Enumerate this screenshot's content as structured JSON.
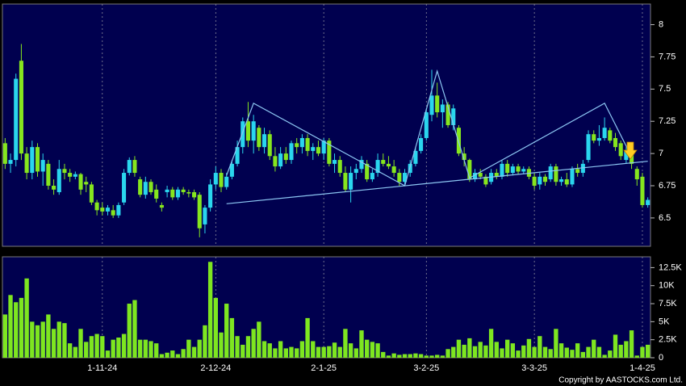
{
  "chart_data": [
    {
      "type": "candlestick",
      "up_color": "#2ad6ee",
      "down_color": "#86e61e",
      "open": [
        7.08,
        6.92,
        6.95,
        7.72,
        7.0,
        6.85,
        7.05,
        6.86,
        6.92,
        6.75,
        6.7,
        6.88,
        6.85,
        6.82,
        6.84,
        6.78,
        6.76,
        6.62,
        6.58,
        6.55,
        6.56,
        6.52,
        6.62,
        6.85,
        6.95,
        6.8,
        6.68,
        6.78,
        6.72,
        6.6,
        6.7,
        6.72,
        6.66,
        6.72,
        6.7,
        6.7,
        6.68,
        6.45,
        6.58,
        6.76,
        6.85,
        6.74,
        6.82,
        6.92,
        7.05,
        7.25,
        7.1,
        7.2,
        7.05,
        7.15,
        6.98,
        6.9,
        7.0,
        6.95,
        7.08,
        7.05,
        7.12,
        7.02,
        7.05,
        7.0,
        7.1,
        6.92,
        6.95,
        6.85,
        6.72,
        6.85,
        6.88,
        6.92,
        6.8,
        6.85,
        6.95,
        6.92,
        6.9,
        6.85,
        6.78,
        6.85,
        6.92,
        7.02,
        7.12,
        7.3,
        7.45,
        7.32,
        7.38,
        7.22,
        7.2,
        7.0,
        6.95,
        6.8,
        6.85,
        6.82,
        6.78,
        6.85,
        6.82,
        6.92,
        6.85,
        6.9,
        6.86,
        6.88,
        6.82,
        6.76,
        6.82,
        6.8,
        6.9,
        6.78,
        6.8,
        6.76,
        6.88,
        6.85,
        6.95,
        7.15,
        7.1,
        7.12,
        7.18,
        7.12,
        7.08,
        6.95,
        7.02,
        6.88,
        6.82,
        6.6
      ],
      "high": [
        7.12,
        7.0,
        7.62,
        7.85,
        7.05,
        7.1,
        7.08,
        7.0,
        6.95,
        6.8,
        6.95,
        6.92,
        6.88,
        6.86,
        6.85,
        6.82,
        6.78,
        6.64,
        6.62,
        6.6,
        6.6,
        6.62,
        6.88,
        6.97,
        6.98,
        6.82,
        6.82,
        6.8,
        6.76,
        6.62,
        6.75,
        6.74,
        6.74,
        6.74,
        6.72,
        6.72,
        6.7,
        6.6,
        6.8,
        6.9,
        6.88,
        6.85,
        6.95,
        7.1,
        7.28,
        7.4,
        7.3,
        7.22,
        7.2,
        7.18,
        7.05,
        7.05,
        7.05,
        7.1,
        7.12,
        7.15,
        7.15,
        7.08,
        7.1,
        7.12,
        7.12,
        7.0,
        6.98,
        6.9,
        6.9,
        6.92,
        6.98,
        6.95,
        6.88,
        7.0,
        7.0,
        6.98,
        6.95,
        6.88,
        6.88,
        6.95,
        7.05,
        7.15,
        7.35,
        7.65,
        7.55,
        7.42,
        7.4,
        7.38,
        7.22,
        7.05,
        6.96,
        6.88,
        6.88,
        6.84,
        6.88,
        6.88,
        6.95,
        6.95,
        6.92,
        6.92,
        6.9,
        6.9,
        6.85,
        6.85,
        6.84,
        6.92,
        6.92,
        6.82,
        6.85,
        6.9,
        6.92,
        6.95,
        7.18,
        7.18,
        7.22,
        7.28,
        7.2,
        7.16,
        7.1,
        7.05,
        7.06,
        6.9,
        6.85,
        6.66
      ],
      "low": [
        6.88,
        6.85,
        6.9,
        6.95,
        6.8,
        6.8,
        6.82,
        6.75,
        6.72,
        6.68,
        6.68,
        6.8,
        6.78,
        6.8,
        6.68,
        6.7,
        6.6,
        6.52,
        6.52,
        6.52,
        6.5,
        6.5,
        6.6,
        6.83,
        6.82,
        6.66,
        6.65,
        6.68,
        6.62,
        6.55,
        6.66,
        6.64,
        6.64,
        6.68,
        6.66,
        6.64,
        6.35,
        6.38,
        6.55,
        6.72,
        6.7,
        6.72,
        6.8,
        6.9,
        7.0,
        7.05,
        7.0,
        7.02,
        7.0,
        6.95,
        6.86,
        6.88,
        6.92,
        6.92,
        7.0,
        7.0,
        6.98,
        6.95,
        6.98,
        6.95,
        6.9,
        6.85,
        6.82,
        6.7,
        6.62,
        6.8,
        6.85,
        6.78,
        6.78,
        6.82,
        6.9,
        6.88,
        6.82,
        6.75,
        6.76,
        6.82,
        6.9,
        7.0,
        7.1,
        7.25,
        7.28,
        7.2,
        7.2,
        7.18,
        6.98,
        6.9,
        6.78,
        6.78,
        6.8,
        6.74,
        6.76,
        6.8,
        6.8,
        6.82,
        6.83,
        6.84,
        6.84,
        6.8,
        6.72,
        6.72,
        6.75,
        6.78,
        6.75,
        6.75,
        6.74,
        6.74,
        6.82,
        6.82,
        6.93,
        7.08,
        7.06,
        7.1,
        7.08,
        7.02,
        6.95,
        6.92,
        6.88,
        6.75,
        6.58,
        6.58
      ],
      "close": [
        6.92,
        6.95,
        7.58,
        7.0,
        6.85,
        7.05,
        6.86,
        6.95,
        6.75,
        6.72,
        6.88,
        6.85,
        6.82,
        6.84,
        6.72,
        6.76,
        6.62,
        6.56,
        6.55,
        6.58,
        6.52,
        6.6,
        6.85,
        6.95,
        6.85,
        6.68,
        6.78,
        6.7,
        6.65,
        6.58,
        6.72,
        6.66,
        6.72,
        6.7,
        6.69,
        6.66,
        6.42,
        6.58,
        6.76,
        6.85,
        6.74,
        6.82,
        6.92,
        7.05,
        7.25,
        7.1,
        7.25,
        7.05,
        7.15,
        6.98,
        6.9,
        7.0,
        6.95,
        7.08,
        7.05,
        7.12,
        7.02,
        7.05,
        7.0,
        7.1,
        6.92,
        6.95,
        6.85,
        6.72,
        6.85,
        6.88,
        6.95,
        6.8,
        6.85,
        6.95,
        6.92,
        6.9,
        6.85,
        6.78,
        6.85,
        6.92,
        7.02,
        7.12,
        7.32,
        7.45,
        7.32,
        7.38,
        7.22,
        7.35,
        7.0,
        6.95,
        6.8,
        6.85,
        6.82,
        6.76,
        6.85,
        6.82,
        6.92,
        6.85,
        6.9,
        6.86,
        6.88,
        6.82,
        6.75,
        6.82,
        6.78,
        6.9,
        6.78,
        6.8,
        6.76,
        6.88,
        6.85,
        6.92,
        7.15,
        7.1,
        7.12,
        7.2,
        7.1,
        7.05,
        6.98,
        7.02,
        6.92,
        6.8,
        6.6,
        6.64
      ],
      "ylim": [
        6.28,
        8.16
      ],
      "yticks": [
        6.5,
        6.75,
        7,
        7.25,
        7.5,
        7.75,
        8
      ],
      "overlays": [
        {
          "color": "#8cc6f2",
          "x": [
            41,
            46,
            74,
            80,
            86,
            111,
            116
          ],
          "y": [
            6.83,
            7.39,
            6.75,
            7.64,
            6.81,
            7.39,
            6.975
          ]
        },
        {
          "color": "#8cc6f2",
          "x": [
            41,
            119
          ],
          "y": [
            6.61,
            6.94
          ]
        }
      ]
    },
    {
      "type": "bar",
      "color": "#7ee620",
      "categories": [
        null,
        null,
        null,
        null,
        null,
        null,
        null,
        null,
        null,
        null,
        null,
        null,
        null,
        null,
        null,
        null,
        null,
        null,
        "1-11-24",
        null,
        null,
        null,
        null,
        null,
        null,
        null,
        null,
        null,
        null,
        null,
        null,
        null,
        null,
        null,
        null,
        null,
        null,
        null,
        null,
        "2-12-24",
        null,
        null,
        null,
        null,
        null,
        null,
        null,
        null,
        null,
        null,
        null,
        null,
        null,
        null,
        null,
        null,
        null,
        null,
        null,
        "2-1-25",
        null,
        null,
        null,
        null,
        null,
        null,
        null,
        null,
        null,
        null,
        null,
        null,
        null,
        null,
        null,
        null,
        null,
        null,
        "3-2-25",
        null,
        null,
        null,
        null,
        null,
        null,
        null,
        null,
        null,
        null,
        null,
        null,
        null,
        null,
        null,
        null,
        null,
        null,
        null,
        "3-3-25",
        null,
        null,
        null,
        null,
        null,
        null,
        null,
        null,
        null,
        null,
        null,
        null,
        null,
        null,
        null,
        null,
        null,
        null,
        null,
        "1-4-25",
        null
      ],
      "values": [
        6000,
        8700,
        7700,
        8300,
        11000,
        5000,
        4500,
        5000,
        6000,
        4000,
        5000,
        4800,
        2000,
        1500,
        4000,
        2200,
        3000,
        3300,
        3000,
        1000,
        2500,
        2800,
        3300,
        7500,
        8000,
        2500,
        2500,
        2300,
        2000,
        500,
        700,
        1000,
        500,
        1200,
        2500,
        1500,
        2500,
        4500,
        13300,
        8300,
        3500,
        7500,
        5500,
        3000,
        1800,
        3000,
        4000,
        5000,
        2300,
        2000,
        1300,
        2300,
        1300,
        1500,
        1300,
        2300,
        5500,
        2300,
        1500,
        1500,
        1600,
        2100,
        1500,
        4000,
        2000,
        1300,
        3800,
        2500,
        2200,
        2000,
        800,
        300,
        600,
        400,
        500,
        500,
        600,
        500,
        300,
        300,
        400,
        300,
        1200,
        1500,
        2500,
        1800,
        2700,
        1600,
        2200,
        1700,
        4000,
        2200,
        1300,
        2500,
        2000,
        1000,
        1700,
        2600,
        1500,
        3000,
        1500,
        1200,
        4000,
        2000,
        1400,
        1100,
        2000,
        800,
        1500,
        2500,
        1500,
        400,
        1000,
        3200,
        1800,
        2300,
        3800,
        300,
        1500,
        1800
      ],
      "ylim": [
        0,
        14000
      ],
      "yticks": [
        0,
        {
          "value": 2500,
          "label": "2.5K"
        },
        {
          "value": 5000,
          "label": "5K"
        },
        {
          "value": 7500,
          "label": "7.5K"
        },
        {
          "value": 10000,
          "label": "10K"
        },
        {
          "value": 12500,
          "label": "12.5K"
        }
      ]
    }
  ],
  "credit": "Copyright by AASTOCKS.com Ltd."
}
